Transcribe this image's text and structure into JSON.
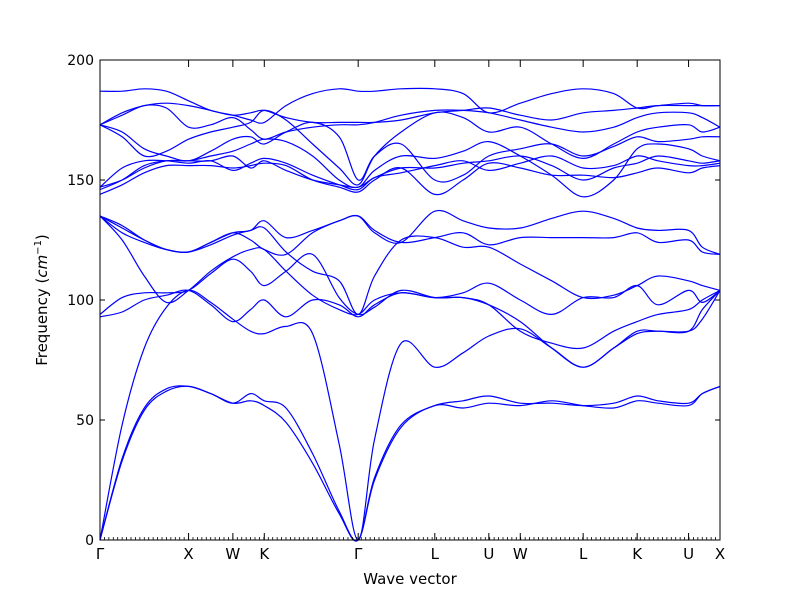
{
  "chart_data": {
    "type": "line",
    "title": "",
    "xlabel": "Wave vector",
    "ylabel": "Frequency",
    "ylabel_unit": "cm",
    "ylabel_unit_exp": "−1",
    "ylim": [
      0,
      200
    ],
    "yticks": [
      0,
      50,
      100,
      150,
      200
    ],
    "xlim": [
      0,
      7.0
    ],
    "grid": false,
    "legend": "none",
    "line_color": "#0000ff",
    "high_symmetry_points": [
      {
        "label": "Γ",
        "x": 0.0
      },
      {
        "label": "X",
        "x": 1.0
      },
      {
        "label": "W",
        "x": 1.5
      },
      {
        "label": "K",
        "x": 1.855
      },
      {
        "label": "Γ",
        "x": 2.915
      },
      {
        "label": "L",
        "x": 3.78
      },
      {
        "label": "U",
        "x": 4.39
      },
      {
        "label": "W",
        "x": 4.745
      },
      {
        "label": "L",
        "x": 5.455
      },
      {
        "label": "K",
        "x": 6.065
      },
      {
        "label": "U",
        "x": 6.645
      },
      {
        "label": "X",
        "x": 7.0
      }
    ],
    "series": [
      {
        "x": [
          0,
          0.25,
          0.5,
          0.75,
          1.0,
          1.25,
          1.5,
          1.7,
          1.855,
          2.1,
          2.4,
          2.7,
          2.915,
          3.1,
          3.4,
          3.78,
          4.1,
          4.39,
          4.745,
          5.1,
          5.455,
          5.8,
          6.065,
          6.3,
          6.645,
          6.8,
          7.0
        ],
        "values": [
          0,
          34,
          55,
          63,
          64,
          61,
          57,
          58,
          56,
          49,
          32,
          11,
          0,
          26,
          48,
          56,
          58,
          60,
          57,
          57,
          56,
          57,
          60,
          58,
          57,
          61,
          64
        ]
      },
      {
        "x": [
          0,
          0.25,
          0.5,
          0.75,
          1.0,
          1.25,
          1.5,
          1.7,
          1.855,
          2.1,
          2.4,
          2.7,
          2.915,
          3.1,
          3.4,
          3.78,
          4.1,
          4.39,
          4.745,
          5.1,
          5.455,
          5.8,
          6.065,
          6.3,
          6.645,
          6.8,
          7.0
        ],
        "values": [
          0,
          33,
          54,
          62,
          64,
          61,
          57,
          61,
          58,
          55,
          36,
          12,
          0,
          25,
          47,
          56,
          55,
          57,
          56,
          58,
          56,
          55,
          58,
          57,
          56,
          61,
          64
        ]
      },
      {
        "x": [
          0,
          0.25,
          0.5,
          0.75,
          1.0,
          1.25,
          1.5,
          1.7,
          1.855,
          2.1,
          2.4,
          2.7,
          2.915,
          3.1,
          3.4,
          3.78,
          4.1,
          4.39,
          4.745,
          5.1,
          5.455,
          5.8,
          6.065,
          6.3,
          6.645,
          6.8,
          7.0
        ],
        "values": [
          0,
          48,
          80,
          97,
          104,
          99,
          92,
          87,
          86,
          89,
          86,
          40,
          0,
          42,
          82,
          72,
          78,
          85,
          88,
          80,
          72,
          80,
          86,
          87,
          87,
          92,
          104
        ]
      },
      {
        "x": [
          0,
          0.25,
          0.5,
          0.75,
          1.0,
          1.25,
          1.5,
          1.7,
          1.855,
          2.1,
          2.4,
          2.7,
          2.915,
          3.1,
          3.4,
          3.78,
          4.1,
          4.39,
          4.745,
          5.1,
          5.455,
          5.8,
          6.065,
          6.3,
          6.645,
          6.8,
          7.0
        ],
        "values": [
          93,
          95,
          100,
          102,
          104,
          98,
          91,
          96,
          100,
          93,
          100,
          98,
          93,
          98,
          103,
          101,
          103,
          107,
          100,
          94,
          101,
          101,
          106,
          98,
          104,
          99,
          104
        ]
      },
      {
        "x": [
          0,
          0.25,
          0.5,
          0.75,
          1.0,
          1.25,
          1.5,
          1.7,
          1.855,
          2.1,
          2.4,
          2.7,
          2.915,
          3.1,
          3.4,
          3.78,
          4.1,
          4.39,
          4.745,
          5.1,
          5.455,
          5.8,
          6.065,
          6.3,
          6.645,
          6.8,
          7.0
        ],
        "values": [
          94,
          101,
          103,
          103,
          104,
          111,
          117,
          112,
          106,
          112,
          119,
          101,
          94,
          97,
          104,
          101,
          101,
          98,
          87,
          82,
          80,
          87,
          91,
          94,
          96,
          100,
          104
        ]
      },
      {
        "x": [
          0,
          0.25,
          0.5,
          0.75,
          1.0,
          1.25,
          1.5,
          1.7,
          1.855,
          2.1,
          2.4,
          2.7,
          2.915,
          3.1,
          3.4,
          3.78,
          4.1,
          4.39,
          4.745,
          5.1,
          5.455,
          5.8,
          6.065,
          6.3,
          6.645,
          6.8,
          7.0
        ],
        "values": [
          135,
          125,
          110,
          99,
          104,
          112,
          118,
          121,
          121,
          112,
          102,
          96,
          94,
          100,
          103,
          101,
          101,
          98,
          91,
          80,
          72,
          80,
          87,
          87,
          87,
          96,
          104
        ]
      },
      {
        "x": [
          0,
          0.25,
          0.5,
          0.75,
          1.0,
          1.25,
          1.5,
          1.7,
          1.855,
          2.1,
          2.4,
          2.7,
          2.915,
          3.1,
          3.4,
          3.78,
          4.1,
          4.39,
          4.745,
          5.1,
          5.455,
          5.8,
          6.065,
          6.3,
          6.645,
          6.8,
          7.0
        ],
        "values": [
          135,
          131,
          125,
          121,
          120,
          124,
          128,
          125,
          121,
          119,
          128,
          133,
          135,
          129,
          124,
          126,
          128,
          123,
          126,
          126,
          126,
          126,
          128,
          124,
          125,
          120,
          119
        ]
      },
      {
        "x": [
          0,
          0.25,
          0.5,
          0.75,
          1.0,
          1.25,
          1.5,
          1.7,
          1.855,
          2.1,
          2.4,
          2.7,
          2.915,
          3.1,
          3.4,
          3.78,
          4.1,
          4.39,
          4.745,
          5.1,
          5.455,
          5.8,
          6.065,
          6.3,
          6.645,
          6.8,
          7.0
        ],
        "values": [
          135,
          130,
          125,
          121,
          120,
          123,
          127,
          129,
          130,
          120,
          112,
          108,
          94,
          110,
          125,
          126,
          122,
          122,
          115,
          108,
          101,
          102,
          106,
          110,
          108,
          106,
          104
        ]
      },
      {
        "x": [
          0,
          0.25,
          0.5,
          0.75,
          1.0,
          1.25,
          1.5,
          1.7,
          1.855,
          2.1,
          2.4,
          2.7,
          2.915,
          3.1,
          3.4,
          3.78,
          4.1,
          4.39,
          4.745,
          5.1,
          5.455,
          5.8,
          6.065,
          6.3,
          6.645,
          6.8,
          7.0
        ],
        "values": [
          135,
          128,
          124,
          121,
          120,
          124,
          128,
          129,
          133,
          126,
          129,
          133,
          135,
          128,
          124,
          137,
          133,
          130,
          130,
          134,
          137,
          134,
          130,
          129,
          129,
          122,
          119
        ]
      },
      {
        "x": [
          0,
          0.25,
          0.5,
          0.75,
          1.0,
          1.25,
          1.5,
          1.7,
          1.855,
          2.1,
          2.4,
          2.7,
          2.915,
          3.1,
          3.4,
          3.78,
          4.1,
          4.39,
          4.745,
          5.1,
          5.455,
          5.8,
          6.065,
          6.3,
          6.645,
          6.8,
          7.0
        ],
        "values": [
          144,
          148,
          153,
          156,
          156,
          156,
          155,
          156,
          157,
          156,
          150,
          147,
          145,
          150,
          155,
          144,
          150,
          157,
          155,
          152,
          152,
          151,
          153,
          155,
          153,
          155,
          156
        ]
      },
      {
        "x": [
          0,
          0.25,
          0.5,
          0.75,
          1.0,
          1.25,
          1.5,
          1.7,
          1.855,
          2.1,
          2.4,
          2.7,
          2.915,
          3.1,
          3.4,
          3.78,
          4.1,
          4.39,
          4.745,
          5.1,
          5.455,
          5.8,
          6.065,
          6.3,
          6.645,
          6.8,
          7.0
        ],
        "values": [
          146,
          150,
          156,
          158,
          158,
          158,
          160,
          155,
          158,
          154,
          150,
          148,
          147,
          151,
          155,
          155,
          157,
          158,
          160,
          156,
          150,
          155,
          157,
          160,
          158,
          157,
          158
        ]
      },
      {
        "x": [
          0,
          0.25,
          0.5,
          0.75,
          1.0,
          1.25,
          1.5,
          1.7,
          1.855,
          2.1,
          2.4,
          2.7,
          2.915,
          3.1,
          3.4,
          3.78,
          4.1,
          4.39,
          4.745,
          5.1,
          5.455,
          5.8,
          6.065,
          6.3,
          6.645,
          6.8,
          7.0
        ],
        "values": [
          147,
          155,
          158,
          158,
          157,
          158,
          154,
          157,
          159,
          157,
          152,
          148,
          146,
          151,
          153,
          156,
          158,
          154,
          157,
          160,
          155,
          156,
          160,
          158,
          156,
          156,
          157
        ]
      },
      {
        "x": [
          0,
          0.25,
          0.5,
          0.75,
          1.0,
          1.25,
          1.5,
          1.7,
          1.855,
          2.1,
          2.4,
          2.7,
          2.915,
          3.1,
          3.4,
          3.78,
          4.1,
          4.39,
          4.745,
          5.1,
          5.455,
          5.8,
          6.065,
          6.3,
          6.645,
          6.8,
          7.0
        ],
        "values": [
          147,
          150,
          155,
          158,
          158,
          160,
          162,
          165,
          167,
          166,
          160,
          150,
          147,
          154,
          160,
          159,
          162,
          166,
          160,
          152,
          143,
          150,
          163,
          165,
          163,
          160,
          158
        ]
      },
      {
        "x": [
          0,
          0.25,
          0.5,
          0.75,
          1.0,
          1.25,
          1.5,
          1.7,
          1.855,
          2.1,
          2.4,
          2.7,
          2.915,
          3.1,
          3.4,
          3.78,
          4.1,
          4.39,
          4.745,
          5.1,
          5.455,
          5.8,
          6.065,
          6.3,
          6.645,
          6.8,
          7.0
        ],
        "values": [
          173,
          170,
          163,
          160,
          158,
          162,
          167,
          168,
          165,
          170,
          174,
          168,
          150,
          160,
          165,
          150,
          152,
          160,
          163,
          165,
          160,
          164,
          168,
          166,
          167,
          168,
          168
        ]
      },
      {
        "x": [
          0,
          0.25,
          0.5,
          0.75,
          1.0,
          1.25,
          1.5,
          1.7,
          1.855,
          2.1,
          2.4,
          2.7,
          2.915,
          3.1,
          3.4,
          3.78,
          4.1,
          4.39,
          4.745,
          5.1,
          5.455,
          5.8,
          6.065,
          6.3,
          6.645,
          6.8,
          7.0
        ],
        "values": [
          173,
          168,
          160,
          162,
          167,
          170,
          172,
          174,
          179,
          175,
          165,
          155,
          148,
          160,
          170,
          178,
          176,
          170,
          172,
          165,
          159,
          165,
          170,
          172,
          173,
          170,
          172
        ]
      },
      {
        "x": [
          0,
          0.25,
          0.5,
          0.75,
          1.0,
          1.25,
          1.5,
          1.7,
          1.855,
          2.1,
          2.4,
          2.7,
          2.915,
          3.1,
          3.4,
          3.78,
          4.1,
          4.39,
          4.745,
          5.1,
          5.455,
          5.8,
          6.065,
          6.3,
          6.645,
          6.8,
          7.0
        ],
        "values": [
          173,
          177,
          181,
          180,
          172,
          173,
          176,
          171,
          167,
          170,
          172,
          173,
          173,
          174,
          177,
          179,
          179,
          178,
          175,
          172,
          170,
          172,
          176,
          178,
          178,
          176,
          172
        ]
      },
      {
        "x": [
          0,
          0.25,
          0.5,
          0.75,
          1.0,
          1.25,
          1.5,
          1.7,
          1.855,
          2.1,
          2.4,
          2.7,
          2.915,
          3.1,
          3.4,
          3.78,
          4.1,
          4.39,
          4.745,
          5.1,
          5.455,
          5.8,
          6.065,
          6.3,
          6.645,
          6.8,
          7.0
        ],
        "values": [
          173,
          178,
          181,
          182,
          181,
          179,
          177,
          178,
          179,
          176,
          174,
          174,
          174,
          174,
          175,
          178,
          179,
          180,
          177,
          175,
          178,
          179,
          180,
          181,
          181,
          181,
          181
        ]
      },
      {
        "x": [
          0,
          0.25,
          0.5,
          0.75,
          1.0,
          1.25,
          1.5,
          1.7,
          1.855,
          2.1,
          2.4,
          2.7,
          2.915,
          3.1,
          3.4,
          3.78,
          4.1,
          4.39,
          4.745,
          5.1,
          5.455,
          5.8,
          6.065,
          6.3,
          6.645,
          6.8,
          7.0
        ],
        "values": [
          187,
          187,
          188,
          187,
          183,
          179,
          177,
          175,
          174,
          181,
          186,
          188,
          187,
          187,
          188,
          188,
          186,
          178,
          182,
          186,
          188,
          186,
          180,
          181,
          182,
          181,
          181
        ]
      }
    ]
  }
}
